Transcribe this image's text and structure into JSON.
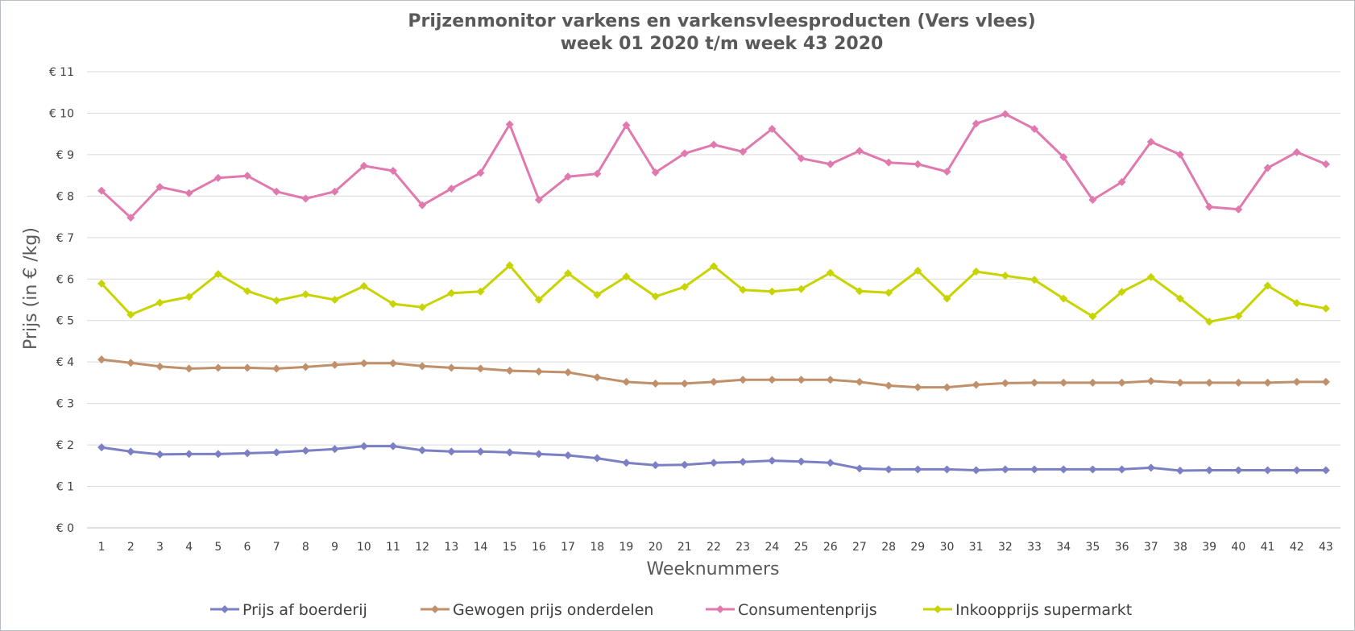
{
  "chart_data": {
    "type": "line",
    "title": "Prijzenmonitor varkens en varkensvleesproducten (Vers vlees)",
    "subtitle": "week 01 2020 t/m week 43 2020",
    "xlabel": "Weeknummers",
    "ylabel": "Prijs (in € /kg)",
    "ylim": [
      0,
      11
    ],
    "yticks": [
      "€ 0",
      "€ 1",
      "€ 2",
      "€ 3",
      "€ 4",
      "€ 5",
      "€ 6",
      "€ 7",
      "€ 8",
      "€ 9",
      "€ 10",
      "€ 11"
    ],
    "grid": true,
    "legend_position": "bottom",
    "categories": [
      "1",
      "2",
      "3",
      "4",
      "5",
      "6",
      "7",
      "8",
      "9",
      "10",
      "11",
      "12",
      "13",
      "14",
      "15",
      "16",
      "17",
      "18",
      "19",
      "20",
      "21",
      "22",
      "23",
      "24",
      "25",
      "26",
      "27",
      "28",
      "29",
      "30",
      "31",
      "32",
      "33",
      "34",
      "35",
      "36",
      "37",
      "38",
      "39",
      "40",
      "41",
      "42",
      "43"
    ],
    "series": [
      {
        "name": "Prijs af boerderij",
        "color": "#7b7fc4",
        "values": [
          1.94,
          1.84,
          1.77,
          1.78,
          1.78,
          1.8,
          1.82,
          1.86,
          1.9,
          1.97,
          1.97,
          1.87,
          1.84,
          1.84,
          1.82,
          1.78,
          1.75,
          1.68,
          1.57,
          1.51,
          1.52,
          1.57,
          1.59,
          1.62,
          1.6,
          1.57,
          1.43,
          1.41,
          1.41,
          1.41,
          1.39,
          1.41,
          1.41,
          1.41,
          1.41,
          1.41,
          1.45,
          1.38,
          1.39,
          1.39,
          1.39,
          1.39,
          1.39
        ]
      },
      {
        "name": "Gewogen prijs onderdelen",
        "color": "#c0906a",
        "values": [
          4.06,
          3.98,
          3.89,
          3.84,
          3.86,
          3.86,
          3.84,
          3.88,
          3.93,
          3.97,
          3.97,
          3.9,
          3.86,
          3.84,
          3.79,
          3.77,
          3.75,
          3.63,
          3.52,
          3.48,
          3.48,
          3.52,
          3.57,
          3.57,
          3.57,
          3.57,
          3.52,
          3.43,
          3.39,
          3.39,
          3.45,
          3.49,
          3.5,
          3.5,
          3.5,
          3.5,
          3.54,
          3.5,
          3.5,
          3.5,
          3.5,
          3.52,
          3.52
        ]
      },
      {
        "name": "Consumentenprijs",
        "color": "#e07aae",
        "values": [
          8.13,
          7.48,
          8.22,
          8.07,
          8.44,
          8.49,
          8.11,
          7.94,
          8.11,
          8.73,
          8.61,
          7.78,
          8.18,
          8.56,
          9.73,
          7.91,
          8.47,
          8.54,
          9.71,
          8.57,
          9.03,
          9.24,
          9.07,
          9.62,
          8.91,
          8.77,
          9.09,
          8.81,
          8.77,
          8.59,
          9.75,
          9.98,
          9.62,
          8.94,
          7.91,
          8.34,
          9.31,
          9.0,
          7.74,
          7.68,
          8.68,
          9.06,
          8.77
        ]
      },
      {
        "name": "Inkoopprijs supermarkt",
        "color": "#c8d400",
        "values": [
          5.89,
          5.14,
          5.43,
          5.57,
          6.12,
          5.71,
          5.48,
          5.63,
          5.5,
          5.83,
          5.4,
          5.32,
          5.66,
          5.7,
          6.33,
          5.5,
          6.14,
          5.62,
          6.06,
          5.58,
          5.81,
          6.31,
          5.74,
          5.7,
          5.76,
          6.15,
          5.71,
          5.67,
          6.2,
          5.53,
          6.18,
          6.08,
          5.98,
          5.53,
          5.1,
          5.69,
          6.05,
          5.53,
          4.97,
          5.11,
          5.84,
          5.42,
          5.29
        ]
      }
    ]
  }
}
